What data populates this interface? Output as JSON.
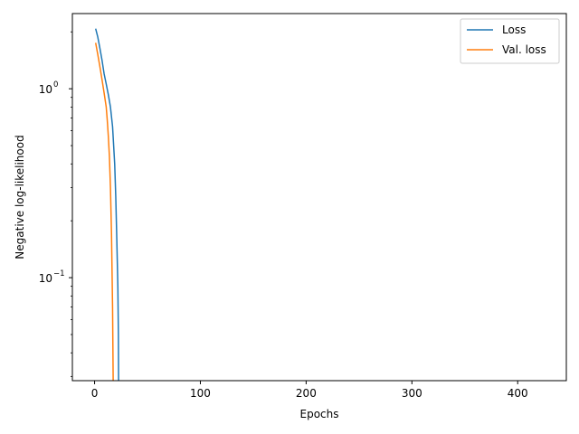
{
  "chart_data": {
    "type": "line",
    "xlabel": "Epochs",
    "ylabel": "Negative log-likelihood",
    "xlim": [
      -21,
      446
    ],
    "ylim": [
      0.0285,
      2.5
    ],
    "yscale": "log",
    "grid": false,
    "legend_position": "upper right",
    "x_ticks": [
      0,
      100,
      200,
      300,
      400
    ],
    "x_tick_labels": [
      "0",
      "100",
      "200",
      "300",
      "400"
    ],
    "y_major_ticks": [
      0.1,
      1
    ],
    "y_tick_labels": [
      "10",
      "10"
    ],
    "y_tick_exponents": [
      "−1",
      "0"
    ],
    "y_minor_ticks": [
      0.03,
      0.04,
      0.05,
      0.06,
      0.07,
      0.08,
      0.09,
      0.2,
      0.3,
      0.4,
      0.5,
      0.6,
      0.7,
      0.8,
      0.9,
      2
    ],
    "series": [
      {
        "name": "Loss",
        "color": "#1f77b4",
        "x": [
          1,
          3,
          5,
          7,
          9,
          11,
          13,
          15,
          17,
          19,
          20,
          21,
          22,
          22.5,
          22.8
        ],
        "y": [
          2.08,
          1.88,
          1.64,
          1.42,
          1.2,
          1.06,
          0.93,
          0.8,
          0.63,
          0.4,
          0.27,
          0.16,
          0.09,
          0.05,
          0.02
        ]
      },
      {
        "name": "Val. loss",
        "color": "#ff7f0e",
        "x": [
          1,
          3,
          5,
          7,
          9,
          11,
          12,
          13,
          14,
          15,
          16,
          17,
          17.8
        ],
        "y": [
          1.75,
          1.52,
          1.31,
          1.12,
          0.95,
          0.8,
          0.68,
          0.56,
          0.44,
          0.3,
          0.17,
          0.07,
          0.02
        ]
      }
    ]
  }
}
